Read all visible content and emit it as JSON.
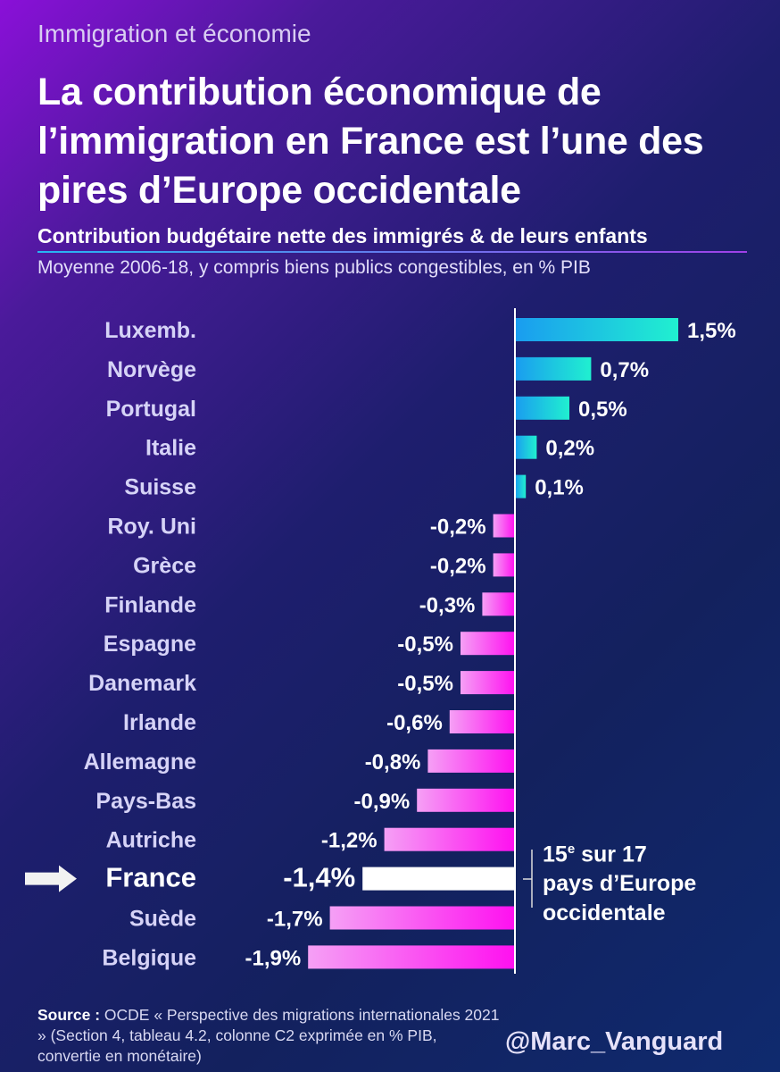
{
  "kicker": "Immigration et économie",
  "title": "La contribution économique de l’immigration en France est l’une des pires d’Europe occidentale",
  "subtitle": "Contribution budgétaire nette des immigrés & de leurs enfants",
  "subnote": "Moyenne 2006-18, y compris biens publics congestibles, en % PIB",
  "note": {
    "rank": "15",
    "rank_suffix": "e",
    "line1_rest": " sur 17",
    "line2": "pays d’Europe",
    "line3": "occidentale"
  },
  "source": {
    "label": "Source :",
    "text": " OCDE « Perspective des migrations internationales 2021 » (Section 4, tableau 4.2, colonne C2 exprimée en % PIB, convertie en monétaire)"
  },
  "handle": "@Marc_Vanguard",
  "colors": {
    "positive_start": "#1a9cf0",
    "positive_end": "#20f0d0",
    "negative_start": "#f5a0f5",
    "negative_end": "#ff10f0",
    "highlight": "#ffffff",
    "label": "#d6d3f7"
  },
  "chart_data": {
    "type": "bar",
    "orientation": "horizontal",
    "unit": "% PIB",
    "highlight": "France",
    "categories": [
      "Luxemb.",
      "Norvège",
      "Portugal",
      "Italie",
      "Suisse",
      "Roy. Uni",
      "Grèce",
      "Finlande",
      "Espagne",
      "Danemark",
      "Irlande",
      "Allemagne",
      "Pays-Bas",
      "Autriche",
      "France",
      "Suède",
      "Belgique"
    ],
    "values": [
      1.5,
      0.7,
      0.5,
      0.2,
      0.1,
      -0.2,
      -0.2,
      -0.3,
      -0.5,
      -0.5,
      -0.6,
      -0.8,
      -0.9,
      -1.2,
      -1.4,
      -1.7,
      -1.9
    ],
    "labels": [
      "1,5%",
      "0,7%",
      "0,5%",
      "0,2%",
      "0,1%",
      "-0,2%",
      "-0,2%",
      "-0,3%",
      "-0,5%",
      "-0,5%",
      "-0,6%",
      "-0,8%",
      "-0,9%",
      "-1,2%",
      "-1,4%",
      "-1,7%",
      "-1,9%"
    ]
  }
}
